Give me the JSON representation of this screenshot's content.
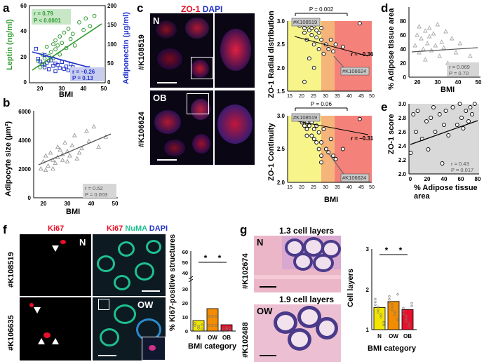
{
  "panels": [
    "a",
    "b",
    "c",
    "d",
    "e",
    "f",
    "g"
  ],
  "panel_a": {
    "chart_data": {
      "type": "scatter",
      "xlabel": "BMI",
      "ylabel": "Leptin (ng/ml)",
      "y2label": "Adiponectin (µg/ml)",
      "xlim": [
        15,
        50
      ],
      "ylim": [
        0,
        60
      ],
      "y2lim": [
        0,
        200
      ],
      "xticks": [
        "20",
        "30",
        "40",
        "50"
      ],
      "yticks": [
        "0",
        "20",
        "40",
        "60"
      ],
      "y2ticks": [
        "0",
        "50",
        "100",
        "150",
        "200"
      ],
      "series": [
        {
          "color": "#2e9a2e",
          "x": [
            19,
            20,
            21,
            22,
            22,
            23,
            24,
            24,
            25,
            26,
            26,
            27,
            27,
            28,
            29,
            29,
            30,
            31,
            32,
            33,
            34,
            35,
            36,
            38,
            40,
            41,
            43,
            45
          ],
          "y": [
            17,
            12,
            22,
            19,
            14,
            28,
            17,
            21,
            24,
            30,
            19,
            33,
            26,
            29,
            36,
            22,
            31,
            39,
            27,
            42,
            34,
            38,
            29,
            47,
            41,
            50,
            44,
            52
          ]
        },
        {
          "color": "#2233cc",
          "x": [
            18,
            19,
            20,
            21,
            22,
            22,
            23,
            24,
            25,
            26,
            27,
            27,
            28,
            29,
            30,
            31,
            32,
            33,
            34,
            35,
            36,
            38,
            40,
            42,
            44
          ],
          "y": [
            88,
            62,
            55,
            48,
            72,
            40,
            52,
            35,
            58,
            44,
            50,
            30,
            46,
            38,
            54,
            36,
            42,
            32,
            48,
            40,
            28,
            34,
            20,
            38,
            24
          ]
        }
      ],
      "stats_green": {
        "r": "r = 0.79",
        "p": "P < 0.0001"
      },
      "stats_blue": {
        "r": "r = –0.26",
        "p": "P = 0.13"
      }
    }
  },
  "panel_b": {
    "chart_data": {
      "type": "scatter",
      "xlabel": "BMI",
      "ylabel": "Adipocyte size (µm²)",
      "xlim": [
        15,
        50
      ],
      "ylim": [
        0,
        6000
      ],
      "xticks": [
        "20",
        "30",
        "40",
        "50"
      ],
      "yticks": [
        "0",
        "2000",
        "4000",
        "6000"
      ],
      "x": [
        18,
        19,
        20,
        20,
        21,
        22,
        23,
        23,
        24,
        25,
        25,
        26,
        27,
        27,
        28,
        29,
        29,
        30,
        31,
        32,
        33,
        34,
        35,
        37,
        38,
        40,
        42,
        45
      ],
      "y": [
        2000,
        2500,
        1900,
        2900,
        2200,
        3100,
        2600,
        2000,
        2400,
        3500,
        2800,
        3300,
        2600,
        3000,
        3800,
        2500,
        3200,
        2900,
        3600,
        4300,
        2700,
        3100,
        3400,
        4600,
        3900,
        4900,
        3500,
        4200
      ],
      "stats": {
        "r": "r = 0.52",
        "p": "P = 0.003"
      }
    }
  },
  "panel_c": {
    "stain_zo1": "ZO-1",
    "stain_dapi": "DAPI",
    "tag_n": "N",
    "tag_ob": "OB",
    "sample_top": "#K108519",
    "sample_bottom": "#K106624",
    "top_chart": {
      "chart_data": {
        "type": "scatter",
        "ylabel": "ZO-1 Radial distribution",
        "xlim": [
          15,
          50
        ],
        "ylim": [
          1.5,
          3.0
        ],
        "xticks": [
          "15",
          "20",
          "25",
          "30",
          "35",
          "40",
          "45",
          "50"
        ],
        "yticks": [
          "1.5",
          "2.0",
          "2.5",
          "3.0"
        ],
        "x": [
          20,
          21,
          22,
          22,
          23,
          23,
          24,
          24,
          25,
          25,
          26,
          26,
          27,
          27,
          28,
          28,
          29,
          29,
          30,
          31,
          32,
          33,
          34,
          35,
          38,
          45,
          22,
          24,
          26
        ],
        "y": [
          2.9,
          2.95,
          2.85,
          2.75,
          2.9,
          2.6,
          2.8,
          2.95,
          2.7,
          2.85,
          2.9,
          2.5,
          2.8,
          2.65,
          2.75,
          2.4,
          2.6,
          2.85,
          2.3,
          2.5,
          2.4,
          2.6,
          2.35,
          2.5,
          2.45,
          2.95,
          1.7,
          2.2,
          2.0
        ],
        "pval": "P = 0.002",
        "r": "r = –0.36",
        "callout_a": "#K108519",
        "callout_b": "#K106624"
      }
    },
    "bottom_chart": {
      "chart_data": {
        "type": "scatter",
        "ylabel": "ZO-1 Continuity",
        "xlabel": "BMI",
        "xlim": [
          15,
          50
        ],
        "ylim": [
          2.0,
          3.0
        ],
        "xticks": [
          "15",
          "20",
          "25",
          "30",
          "35",
          "40",
          "45",
          "50"
        ],
        "yticks": [
          "2.0",
          "2.5",
          "3.0"
        ],
        "x": [
          20,
          21,
          22,
          22,
          23,
          23,
          24,
          24,
          25,
          25,
          26,
          26,
          27,
          27,
          28,
          28,
          29,
          29,
          30,
          31,
          32,
          33,
          34,
          35,
          38,
          45,
          23,
          26,
          29
        ],
        "y": [
          2.95,
          2.9,
          2.85,
          2.98,
          2.9,
          2.8,
          2.95,
          2.85,
          2.9,
          2.7,
          2.8,
          2.95,
          2.6,
          2.85,
          2.5,
          2.75,
          2.3,
          2.6,
          2.8,
          2.5,
          2.45,
          2.65,
          2.4,
          2.35,
          2.5,
          2.95,
          2.7,
          2.65,
          2.4
        ],
        "pval": "P = 0.06",
        "r": "r = –0.31",
        "callout_a": "#K108519",
        "callout_b": "#K106624"
      }
    }
  },
  "panel_d": {
    "chart_data": {
      "type": "scatter",
      "xlabel": "BMI",
      "ylabel": "% Adipose tissue area",
      "xlim": [
        15,
        50
      ],
      "ylim": [
        0,
        100
      ],
      "xticks": [
        "20",
        "30",
        "40",
        "50"
      ],
      "yticks": [
        "0",
        "20",
        "40",
        "60",
        "80"
      ],
      "x": [
        18,
        19,
        20,
        20,
        21,
        22,
        23,
        23,
        24,
        25,
        25,
        26,
        27,
        28,
        29,
        30,
        31,
        32,
        33,
        34,
        36,
        38,
        40,
        45
      ],
      "y": [
        45,
        60,
        35,
        72,
        55,
        40,
        66,
        25,
        48,
        58,
        70,
        38,
        62,
        45,
        75,
        30,
        50,
        42,
        65,
        20,
        55,
        35,
        48,
        30
      ],
      "stats": {
        "r": "r = 0.069",
        "p": "P = 0.70"
      }
    }
  },
  "panel_e": {
    "chart_data": {
      "type": "scatter",
      "xlabel": "% Adipose tissue area",
      "ylabel": "ZO-1 score",
      "xlim": [
        0,
        80
      ],
      "ylim": [
        2.0,
        3.0
      ],
      "xticks": [
        "0",
        "20",
        "40",
        "60",
        "80"
      ],
      "yticks": [
        "2.0",
        "2.2",
        "2.4",
        "2.6",
        "2.8",
        "3.0"
      ],
      "x": [
        2,
        5,
        8,
        10,
        15,
        20,
        22,
        25,
        28,
        30,
        35,
        38,
        40,
        42,
        45,
        50,
        55,
        58,
        60,
        62,
        65,
        68,
        70,
        72,
        75
      ],
      "y": [
        2.3,
        2.85,
        2.6,
        2.9,
        2.5,
        2.75,
        2.35,
        2.8,
        2.95,
        2.6,
        2.85,
        2.15,
        2.7,
        2.9,
        2.55,
        2.95,
        2.7,
        3.0,
        2.8,
        2.65,
        2.9,
        2.75,
        2.95,
        2.85,
        3.0
      ],
      "stats": {
        "r": "r = 0.43",
        "p": "P = 0.017"
      }
    }
  },
  "panel_f": {
    "stain_ki67": "Ki67",
    "stain_numa": "NuMA",
    "stain_dapi": "DAPI",
    "tag_n": "N",
    "tag_ow": "OW",
    "sample_top": "#K108519",
    "sample_bottom": "#K106635",
    "chart_data": {
      "type": "bar",
      "categories": [
        "N",
        "OW",
        "OB"
      ],
      "values": [
        7.5,
        16,
        4.5
      ],
      "colors": [
        "#f2e600",
        "#f28c00",
        "#e8102a"
      ],
      "ylabel": "% Ki67-positive structures",
      "xlabel": "BMI category",
      "yticks": [
        "0",
        "10",
        "20",
        "30",
        "40",
        "50",
        "60"
      ],
      "significance": [
        "*",
        "*"
      ]
    }
  },
  "panel_g": {
    "title_top": "1.3 cell layers",
    "title_bottom": "1.9 cell layers",
    "tag_n": "N",
    "tag_ow": "OW",
    "sample_top": "#K102674",
    "sample_bottom": "#K102488",
    "chart_data": {
      "type": "bar",
      "categories": [
        "N",
        "OW",
        "OB"
      ],
      "values": [
        1.55,
        1.7,
        1.5
      ],
      "colors": [
        "#f2e600",
        "#f28c00",
        "#e8102a"
      ],
      "ylabel": "Cell layers",
      "xlabel": "BMI category",
      "ylim": [
        1,
        3
      ],
      "yticks": [
        "1",
        "2",
        "3"
      ],
      "significance": [
        "*",
        "*"
      ]
    }
  }
}
